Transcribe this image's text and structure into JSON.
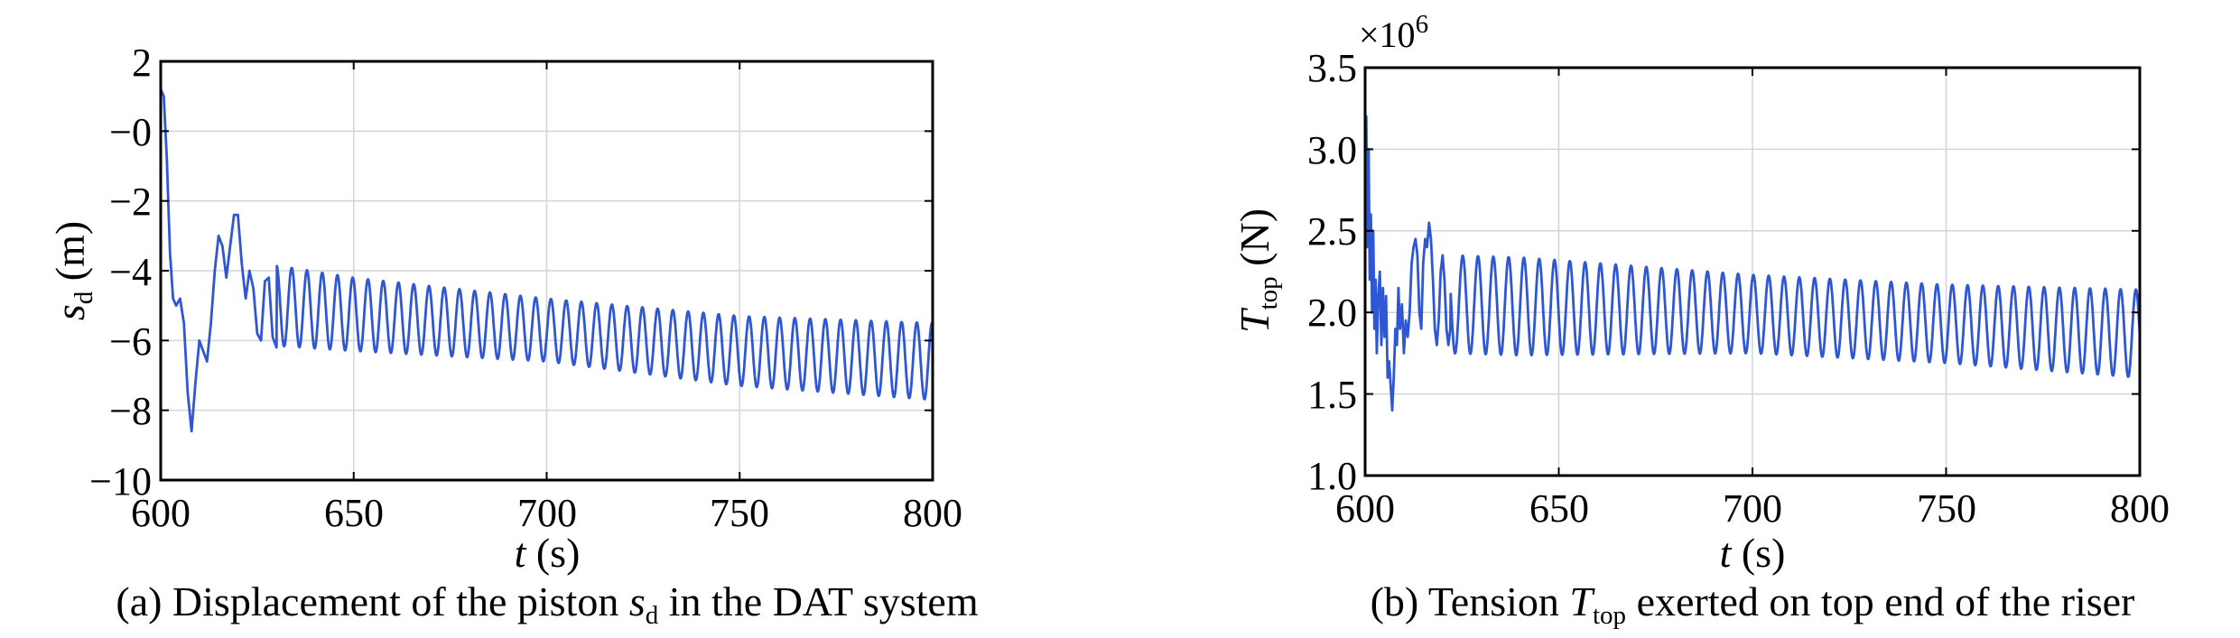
{
  "chart_data": [
    {
      "type": "line",
      "id": "a",
      "caption": {
        "prefix": "(a) Displacement of the piston ",
        "symbol": "s",
        "symbol_sub": "d",
        "suffix": " in the DAT system"
      },
      "xlabel": {
        "symbol": "t",
        "unit": " (s)"
      },
      "ylabel": {
        "symbol": "s",
        "sub": "d",
        "unit": " (m)"
      },
      "xlim": [
        600,
        800
      ],
      "ylim": [
        -10,
        2
      ],
      "xticks": [
        600,
        650,
        700,
        750,
        800
      ],
      "xtick_labels": [
        "600",
        "650",
        "700",
        "750",
        "800"
      ],
      "yticks": [
        2,
        0,
        -2,
        -4,
        -6,
        -8,
        -10
      ],
      "ytick_labels": [
        "2",
        "−0",
        "−2",
        "−4",
        "−6",
        "−8",
        "−10"
      ],
      "grid": true,
      "series": [
        {
          "name": "s_d",
          "color": "#2f57d4",
          "x": [
            600.0,
            600.8,
            601.6,
            602.4,
            603.2,
            604.0,
            605.0,
            606.0,
            607.0,
            608.0,
            609.0,
            610.0,
            611.0,
            612.0,
            613.0,
            614.0,
            615.0,
            616.0,
            617.0,
            618.0,
            619.0,
            620.0,
            621.0,
            622.0,
            623.0,
            624.0,
            625.0,
            626.0,
            627.0,
            628.0,
            629.0,
            630.0
          ],
          "values": [
            1.2,
            1.0,
            -0.8,
            -3.5,
            -4.8,
            -5.0,
            -4.8,
            -5.5,
            -7.5,
            -8.6,
            -7.2,
            -6.0,
            -6.3,
            -6.6,
            -5.5,
            -4.0,
            -3.0,
            -3.3,
            -4.2,
            -3.3,
            -2.4,
            -2.4,
            -3.8,
            -4.8,
            -4.0,
            -4.5,
            -5.8,
            -6.0,
            -4.3,
            -4.2,
            -5.9,
            -6.2
          ],
          "oscillation": {
            "start": 630,
            "end": 800,
            "period": 3.95,
            "phase": 0.0,
            "center": [
              [
                630,
                -5.0
              ],
              [
                650,
                -5.25
              ],
              [
                700,
                -5.7
              ],
              [
                750,
                -6.3
              ],
              [
                800,
                -6.6
              ]
            ],
            "amplitude": [
              [
                630,
                1.15
              ],
              [
                650,
                1.05
              ],
              [
                700,
                0.9
              ],
              [
                750,
                1.0
              ],
              [
                800,
                1.1
              ]
            ]
          }
        }
      ]
    },
    {
      "type": "line",
      "id": "b",
      "caption": {
        "prefix": "(b) Tension ",
        "symbol": "T",
        "symbol_sub": "top",
        "suffix": " exerted on top end of the riser"
      },
      "xlabel": {
        "symbol": "t",
        "unit": " (s)"
      },
      "ylabel": {
        "symbol": "T",
        "sub": "top",
        "unit": " (N)"
      },
      "multiplier": {
        "text": "×10",
        "exp": "6"
      },
      "xlim": [
        600,
        800
      ],
      "ylim": [
        1.0,
        3.5
      ],
      "xticks": [
        600,
        650,
        700,
        750,
        800
      ],
      "xtick_labels": [
        "600",
        "650",
        "700",
        "750",
        "800"
      ],
      "yticks": [
        3.5,
        3.0,
        2.5,
        2.0,
        1.5,
        1.0
      ],
      "ytick_labels": [
        "3.5",
        "3.0",
        "2.5",
        "2.0",
        "1.5",
        "1.0"
      ],
      "grid": true,
      "series": [
        {
          "name": "T_top",
          "color": "#2f57d4",
          "x": [
            600.0,
            600.3,
            600.6,
            600.9,
            601.2,
            601.5,
            601.8,
            602.1,
            602.4,
            602.7,
            603.0,
            603.4,
            603.8,
            604.2,
            604.6,
            605.0,
            605.4,
            605.8,
            606.2,
            606.6,
            607.0,
            607.4,
            607.8,
            608.2,
            608.6,
            609.0,
            609.5,
            610.0,
            610.5,
            611.0,
            611.5,
            612.0,
            612.5,
            613.0,
            613.5,
            614.0,
            614.5,
            615.0,
            615.5,
            616.0,
            616.5,
            617.0,
            617.5,
            618.0,
            618.5,
            619.0,
            619.5,
            620.0,
            620.5,
            621.0,
            621.5,
            622.0
          ],
          "values": [
            2.3,
            3.2,
            2.4,
            3.0,
            2.2,
            2.6,
            2.0,
            2.5,
            1.9,
            2.2,
            1.75,
            2.1,
            2.25,
            1.8,
            2.15,
            1.85,
            2.1,
            1.6,
            1.7,
            1.55,
            1.4,
            1.6,
            1.9,
            1.8,
            2.15,
            1.9,
            2.05,
            1.75,
            1.95,
            1.85,
            2.0,
            2.3,
            2.4,
            2.45,
            2.35,
            2.0,
            1.9,
            2.3,
            2.45,
            2.4,
            2.55,
            2.45,
            2.2,
            1.9,
            1.8,
            1.95,
            2.25,
            2.35,
            2.2,
            1.9,
            1.8,
            1.9
          ],
          "oscillation": {
            "start": 622,
            "end": 800,
            "period": 3.95,
            "phase": 1.2,
            "center": [
              [
                622,
                2.05
              ],
              [
                650,
                2.03
              ],
              [
                700,
                1.99
              ],
              [
                750,
                1.93
              ],
              [
                800,
                1.87
              ]
            ],
            "amplitude": [
              [
                622,
                0.3
              ],
              [
                640,
                0.3
              ],
              [
                700,
                0.24
              ],
              [
                750,
                0.24
              ],
              [
                800,
                0.27
              ]
            ]
          }
        }
      ]
    }
  ]
}
